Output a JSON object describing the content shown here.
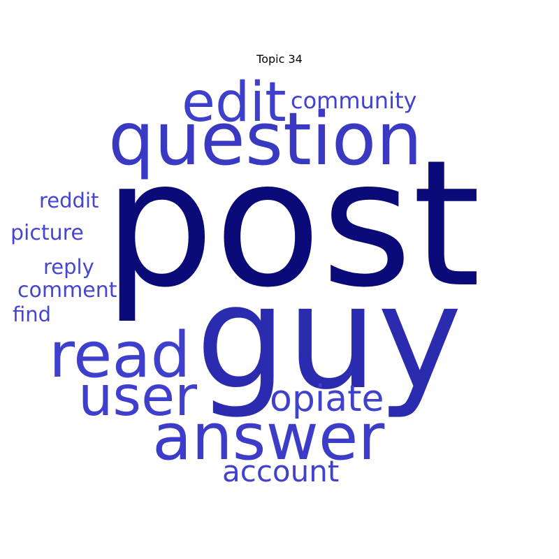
{
  "title": "Topic 34",
  "colors": {
    "dark": "#0a0a78",
    "medium": "#2b2baf",
    "light": "#3f3fce",
    "background": "#ffffff"
  },
  "words": [
    {
      "text": "post",
      "weight": 1.0,
      "color": "#0a0a78"
    },
    {
      "text": "guy",
      "weight": 0.8,
      "color": "#2b2baf"
    },
    {
      "text": "question",
      "weight": 0.42,
      "color": "#3939c2"
    },
    {
      "text": "answer",
      "weight": 0.38,
      "color": "#3c3cc8"
    },
    {
      "text": "read",
      "weight": 0.36,
      "color": "#3f3fce"
    },
    {
      "text": "user",
      "weight": 0.31,
      "color": "#3f3fce"
    },
    {
      "text": "edit",
      "weight": 0.31,
      "color": "#3f3fce"
    },
    {
      "text": "opiate",
      "weight": 0.21,
      "color": "#4141d0"
    },
    {
      "text": "account",
      "weight": 0.18,
      "color": "#4141d0"
    },
    {
      "text": "community",
      "weight": 0.14,
      "color": "#4242d2"
    },
    {
      "text": "picture",
      "weight": 0.13,
      "color": "#4545d4"
    },
    {
      "text": "comment",
      "weight": 0.13,
      "color": "#4545d4"
    },
    {
      "text": "reddit",
      "weight": 0.12,
      "color": "#4545d4"
    },
    {
      "text": "reply",
      "weight": 0.12,
      "color": "#4545d4"
    },
    {
      "text": "find",
      "weight": 0.12,
      "color": "#4545d4"
    }
  ]
}
